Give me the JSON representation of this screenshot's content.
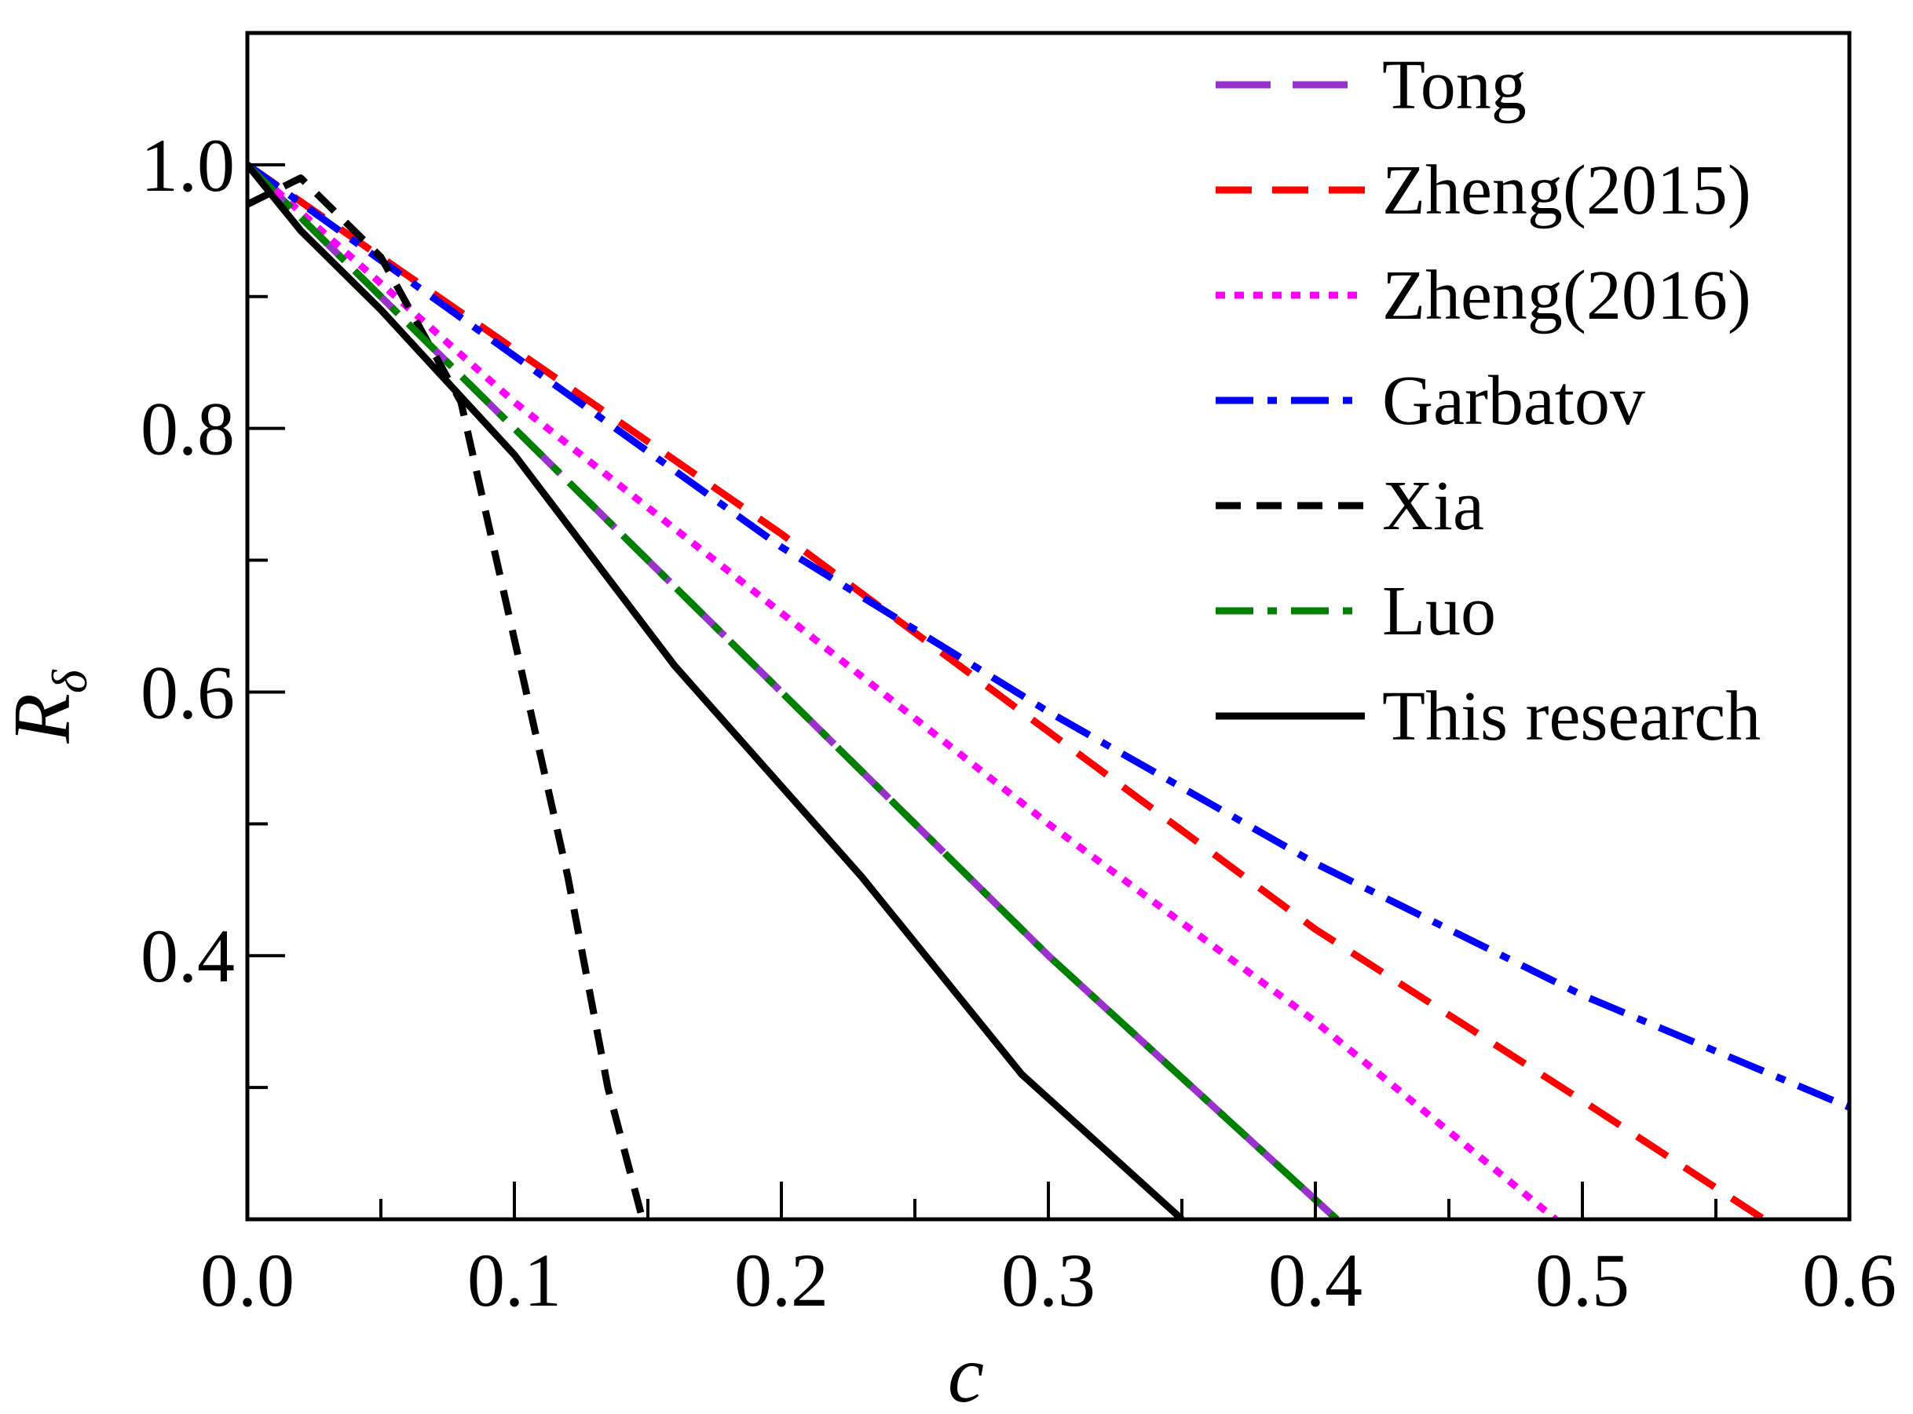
{
  "chart_data": {
    "type": "line",
    "xlabel": "c",
    "ylabel_main": "R",
    "ylabel_sub": "δ",
    "xlim": [
      0.0,
      0.6
    ],
    "ylim": [
      0.2,
      1.1
    ],
    "x_major_ticks": [
      0.0,
      0.1,
      0.2,
      0.3,
      0.4,
      0.5,
      0.6
    ],
    "x_tick_labels": [
      "0.0",
      "0.1",
      "0.2",
      "0.3",
      "0.4",
      "0.5",
      "0.6"
    ],
    "x_minor_ticks": [
      0.05,
      0.15,
      0.25,
      0.35,
      0.45,
      0.55
    ],
    "y_major_ticks": [
      0.4,
      0.6,
      0.8,
      1.0
    ],
    "y_tick_labels": [
      "0.4",
      "0.6",
      "0.8",
      "1.0"
    ],
    "y_minor_ticks": [
      0.3,
      0.5,
      0.7,
      0.9
    ],
    "grid": false,
    "legend_position": "top-right",
    "series": [
      {
        "name": "Tong",
        "color": "#9932CC",
        "style": "longdash",
        "x": [
          0.0,
          0.1,
          0.2,
          0.3,
          0.408
        ],
        "y": [
          1.0,
          0.8,
          0.6,
          0.4,
          0.2
        ]
      },
      {
        "name": "Zheng(2015)",
        "color": "#FF0000",
        "style": "dash",
        "x": [
          0.0,
          0.1,
          0.2,
          0.3,
          0.4,
          0.5,
          0.568
        ],
        "y": [
          1.0,
          0.86,
          0.72,
          0.57,
          0.42,
          0.29,
          0.2
        ]
      },
      {
        "name": "Zheng(2016)",
        "color": "#FF00FF",
        "style": "dot",
        "x": [
          0.0,
          0.1,
          0.2,
          0.3,
          0.4,
          0.49
        ],
        "y": [
          1.0,
          0.82,
          0.66,
          0.5,
          0.35,
          0.2
        ]
      },
      {
        "name": "Garbatov",
        "color": "#0000FF",
        "style": "dashdot",
        "x": [
          0.0,
          0.1,
          0.2,
          0.3,
          0.4,
          0.5,
          0.6
        ],
        "y": [
          1.0,
          0.855,
          0.71,
          0.585,
          0.47,
          0.37,
          0.285
        ]
      },
      {
        "name": "Xia",
        "color": "#000000",
        "style": "shortdash",
        "x": [
          0.0,
          0.02,
          0.05,
          0.08,
          0.1,
          0.12,
          0.135,
          0.148
        ],
        "y": [
          0.97,
          0.99,
          0.93,
          0.82,
          0.64,
          0.46,
          0.3,
          0.2
        ]
      },
      {
        "name": "Luo",
        "color": "#008000",
        "style": "dashdot",
        "x": [
          0.0,
          0.1,
          0.2,
          0.3,
          0.408
        ],
        "y": [
          1.0,
          0.8,
          0.6,
          0.4,
          0.2
        ]
      },
      {
        "name": "This research",
        "color": "#000000",
        "style": "solid",
        "x": [
          0.0,
          0.02,
          0.05,
          0.1,
          0.16,
          0.23,
          0.29,
          0.35
        ],
        "y": [
          1.0,
          0.95,
          0.89,
          0.78,
          0.62,
          0.46,
          0.31,
          0.2
        ]
      }
    ]
  }
}
